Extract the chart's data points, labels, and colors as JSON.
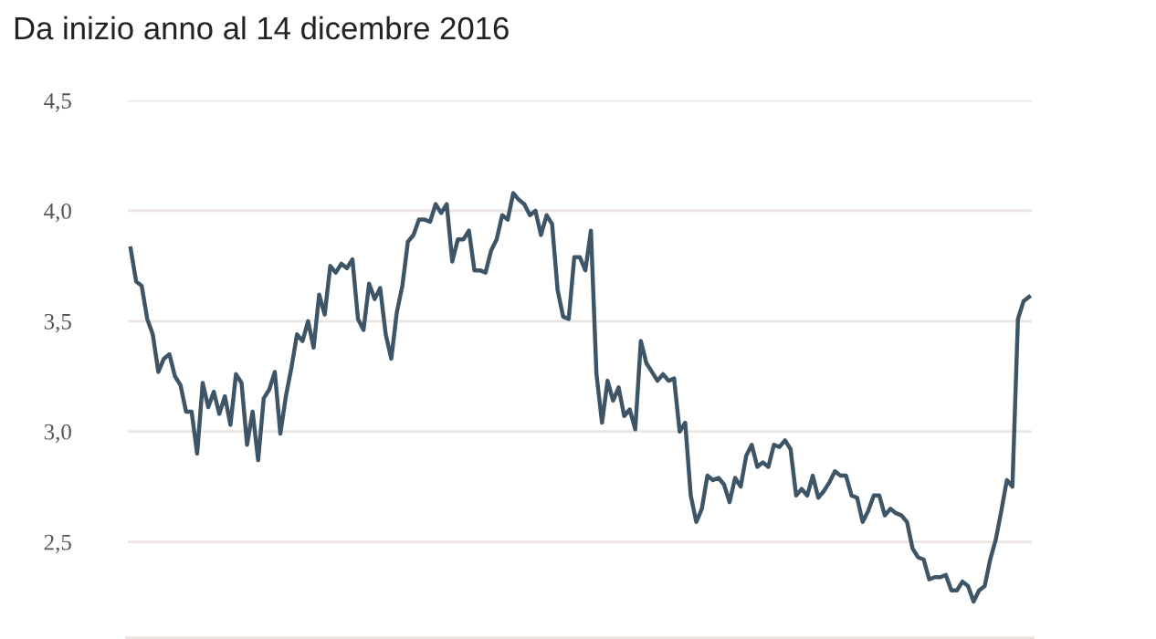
{
  "chart_data": {
    "type": "line",
    "title": "Da inizio anno al 14 dicembre 2016",
    "categories": [
      null,
      null,
      null,
      null,
      null,
      null,
      null,
      null,
      null,
      null,
      null,
      null,
      null,
      null,
      null,
      null,
      null,
      null,
      null,
      null,
      null,
      null,
      null,
      null,
      null,
      null,
      null,
      null,
      null,
      null,
      null,
      null,
      null,
      null,
      null,
      null,
      null,
      null,
      null,
      null,
      null,
      null,
      null,
      null,
      null,
      null,
      null,
      null,
      null,
      null,
      null,
      null,
      null,
      null,
      null,
      null,
      null,
      null,
      null,
      null,
      null,
      null,
      null,
      null,
      null,
      null,
      null,
      null,
      null,
      null,
      null,
      null,
      null,
      null,
      null,
      null,
      null,
      null,
      null,
      null,
      null,
      null,
      null,
      null,
      null,
      null,
      null,
      null,
      null,
      null,
      null,
      null,
      null,
      null,
      null,
      null,
      null,
      null,
      null,
      null,
      null,
      null,
      null,
      null,
      null,
      null,
      null,
      null,
      null,
      null,
      null,
      null,
      null,
      null,
      null,
      null,
      null,
      null,
      null,
      null,
      null,
      null,
      null,
      null,
      null,
      null,
      null,
      null,
      null,
      null,
      null,
      null,
      null,
      null,
      null,
      null,
      null,
      null,
      null,
      null,
      null,
      null,
      null,
      null,
      null,
      null,
      null,
      null,
      null,
      null,
      null,
      null,
      null,
      null,
      null,
      null,
      null,
      null,
      null,
      null,
      null,
      null,
      null
    ],
    "series": [
      {
        "color": "#3d5566",
        "values": [
          3.83,
          3.68,
          3.66,
          3.51,
          3.44,
          3.27,
          3.33,
          3.35,
          3.25,
          3.21,
          3.09,
          3.09,
          2.9,
          3.22,
          3.11,
          3.18,
          3.08,
          3.16,
          3.03,
          3.26,
          3.22,
          2.94,
          3.09,
          2.87,
          3.15,
          3.19,
          3.27,
          2.99,
          3.16,
          3.29,
          3.44,
          3.41,
          3.5,
          3.38,
          3.62,
          3.53,
          3.75,
          3.72,
          3.76,
          3.74,
          3.78,
          3.51,
          3.46,
          3.67,
          3.6,
          3.65,
          3.44,
          3.33,
          3.54,
          3.66,
          3.86,
          3.89,
          3.96,
          3.96,
          3.95,
          4.03,
          3.99,
          4.03,
          3.77,
          3.87,
          3.87,
          3.91,
          3.73,
          3.73,
          3.72,
          3.82,
          3.87,
          3.98,
          3.96,
          4.08,
          4.05,
          4.03,
          3.98,
          4.0,
          3.89,
          3.98,
          3.94,
          3.64,
          3.52,
          3.51,
          3.79,
          3.79,
          3.73,
          3.91,
          3.26,
          3.04,
          3.23,
          3.14,
          3.2,
          3.07,
          3.1,
          3.01,
          3.41,
          3.31,
          3.27,
          3.23,
          3.26,
          3.23,
          3.24,
          3.0,
          3.04,
          2.71,
          2.59,
          2.65,
          2.8,
          2.78,
          2.79,
          2.76,
          2.68,
          2.79,
          2.75,
          2.89,
          2.94,
          2.84,
          2.86,
          2.84,
          2.94,
          2.93,
          2.96,
          2.92,
          2.71,
          2.74,
          2.71,
          2.8,
          2.7,
          2.73,
          2.77,
          2.82,
          2.8,
          2.8,
          2.71,
          2.7,
          2.59,
          2.64,
          2.71,
          2.71,
          2.62,
          2.65,
          2.63,
          2.62,
          2.59,
          2.47,
          2.43,
          2.42,
          2.33,
          2.34,
          2.34,
          2.35,
          2.28,
          2.28,
          2.32,
          2.3,
          2.23,
          2.28,
          2.3,
          2.42,
          2.51,
          2.64,
          2.78,
          2.75,
          3.51,
          3.59,
          3.61
        ]
      }
    ],
    "ylim": [
      2.06,
      4.5
    ],
    "yticks": [
      {
        "value": 2.5,
        "label": "2,5"
      },
      {
        "value": 3.0,
        "label": "3,0"
      },
      {
        "value": 3.5,
        "label": "3,5"
      },
      {
        "value": 4.0,
        "label": "4,0"
      },
      {
        "value": 4.5,
        "label": "4,5"
      }
    ],
    "grid": "y",
    "tick_labels": "y",
    "marker": "none",
    "line_style": "solid"
  }
}
